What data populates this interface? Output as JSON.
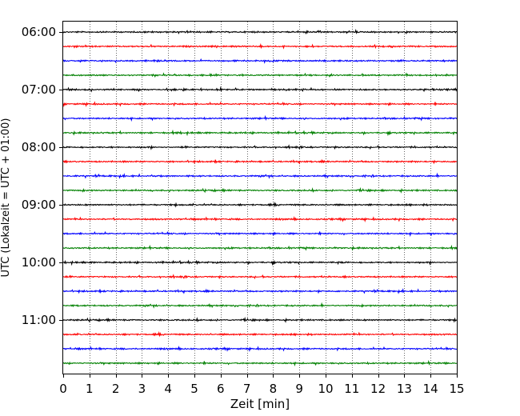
{
  "chart_data": {
    "type": "line",
    "title": "",
    "xlabel": "Zeit  [min]",
    "ylabel": "UTC (Lokalzeit = UTC + 01:00)",
    "xlim": [
      0,
      15
    ],
    "x_ticks": [
      "0",
      "1",
      "2",
      "3",
      "4",
      "5",
      "6",
      "7",
      "8",
      "9",
      "10",
      "11",
      "12",
      "13",
      "14",
      "15"
    ],
    "y_ticks": [
      {
        "label": "06:00",
        "row": 0
      },
      {
        "label": "07:00",
        "row": 4
      },
      {
        "label": "08:00",
        "row": 8
      },
      {
        "label": "09:00",
        "row": 12
      },
      {
        "label": "10:00",
        "row": 16
      },
      {
        "label": "11:00",
        "row": 20
      }
    ],
    "row_minutes": 15,
    "row_count": 24,
    "start_time": "06:00",
    "row_colors": [
      "#000000",
      "#ff0000",
      "#0000ff",
      "#008000"
    ],
    "vertical_gridlines": "dotted at every minute",
    "legend": "none"
  }
}
